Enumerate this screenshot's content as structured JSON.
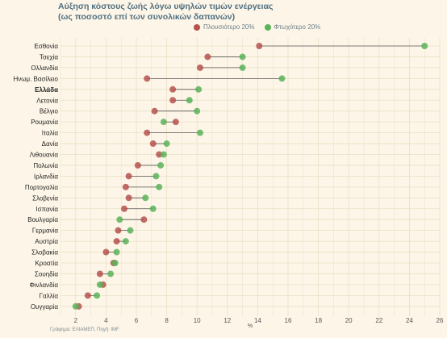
{
  "title_line1": "Αύξηση κόστους ζωής λόγω υψηλών τιμών ενέργειας",
  "title_line2": "(ως ποσοστό επί των συνολικών δαπανών)",
  "source": "Γράφημα: ΕΛΙΑΜΕΠ, Πηγή: IMF",
  "colors": {
    "rich": "#b5524d",
    "poor": "#5bb35a",
    "line": "#555555",
    "background": "#fdf6e8",
    "grid": "#e9dfc5"
  },
  "chart_data": {
    "type": "dumbbell",
    "xlabel": "%",
    "xlim": [
      1,
      26
    ],
    "xticks": [
      2,
      4,
      6,
      8,
      10,
      12,
      14,
      16,
      18,
      20,
      22,
      24,
      26
    ],
    "highlight": "Ελλάδα",
    "legend_position": "top",
    "series": [
      {
        "name": "Πλουσιότερο 20%",
        "key": "rich"
      },
      {
        "name": "Φτωχότερο 20%",
        "key": "poor"
      }
    ],
    "categories": [
      "Εσθονία",
      "Τσεχία",
      "Ολλανδία",
      "Ηνωμ. Βασίλειο",
      "Ελλάδα",
      "Λετονία",
      "Βέλγιο",
      "Ρουμανία",
      "Ιταλία",
      "Δανία",
      "Λιθουανία",
      "Πολωνία",
      "Ιρλανδία",
      "Πορτογαλία",
      "Σλοβενία",
      "Ισπανία",
      "Βουλγαρία",
      "Γερμανία",
      "Αυστρία",
      "Σλοβακία",
      "Κροατία",
      "Σουηδία",
      "Φινλανδία",
      "Γαλλία",
      "Ουγγαρία"
    ],
    "rich": [
      14.1,
      10.7,
      10.2,
      6.7,
      8.4,
      8.4,
      7.2,
      8.6,
      6.7,
      7.1,
      7.5,
      6.1,
      5.5,
      5.3,
      5.5,
      5.2,
      6.5,
      4.8,
      4.7,
      4.0,
      4.5,
      3.6,
      3.8,
      2.8,
      2.2
    ],
    "poor": [
      25.0,
      13.0,
      13.0,
      15.6,
      10.1,
      9.5,
      10.0,
      7.8,
      10.2,
      8.0,
      7.8,
      7.6,
      7.3,
      7.5,
      6.6,
      7.1,
      4.9,
      5.6,
      5.3,
      4.7,
      4.6,
      4.3,
      3.6,
      3.4,
      2.0
    ]
  }
}
